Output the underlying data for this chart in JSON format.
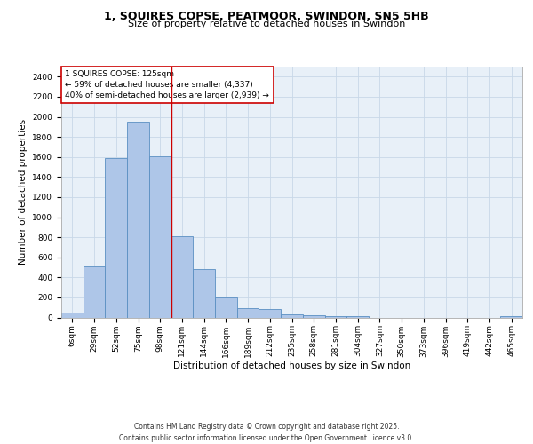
{
  "title_line1": "1, SQUIRES COPSE, PEATMOOR, SWINDON, SN5 5HB",
  "title_line2": "Size of property relative to detached houses in Swindon",
  "xlabel": "Distribution of detached houses by size in Swindon",
  "ylabel": "Number of detached properties",
  "footer_line1": "Contains HM Land Registry data © Crown copyright and database right 2025.",
  "footer_line2": "Contains public sector information licensed under the Open Government Licence v3.0.",
  "bar_labels": [
    "6sqm",
    "29sqm",
    "52sqm",
    "75sqm",
    "98sqm",
    "121sqm",
    "144sqm",
    "166sqm",
    "189sqm",
    "212sqm",
    "235sqm",
    "258sqm",
    "281sqm",
    "304sqm",
    "327sqm",
    "350sqm",
    "373sqm",
    "396sqm",
    "419sqm",
    "442sqm",
    "465sqm"
  ],
  "bar_values": [
    50,
    510,
    1590,
    1950,
    1610,
    810,
    480,
    200,
    95,
    85,
    35,
    20,
    15,
    10,
    0,
    0,
    0,
    0,
    0,
    0,
    10
  ],
  "bar_color": "#aec6e8",
  "bar_edge_color": "#5a8fc2",
  "grid_color": "#c8d8e8",
  "background_color": "#e8f0f8",
  "vline_x": 4.5,
  "vline_color": "#cc0000",
  "annotation_text": "1 SQUIRES COPSE: 125sqm\n← 59% of detached houses are smaller (4,337)\n40% of semi-detached houses are larger (2,939) →",
  "annotation_box_color": "#ffffff",
  "annotation_box_edge": "#cc0000",
  "ylim": [
    0,
    2500
  ],
  "yticks": [
    0,
    200,
    400,
    600,
    800,
    1000,
    1200,
    1400,
    1600,
    1800,
    2000,
    2200,
    2400
  ],
  "title_fontsize": 9,
  "subtitle_fontsize": 8,
  "axis_label_fontsize": 7.5,
  "tick_fontsize": 6.5,
  "annotation_fontsize": 6.5,
  "footer_fontsize": 5.5
}
